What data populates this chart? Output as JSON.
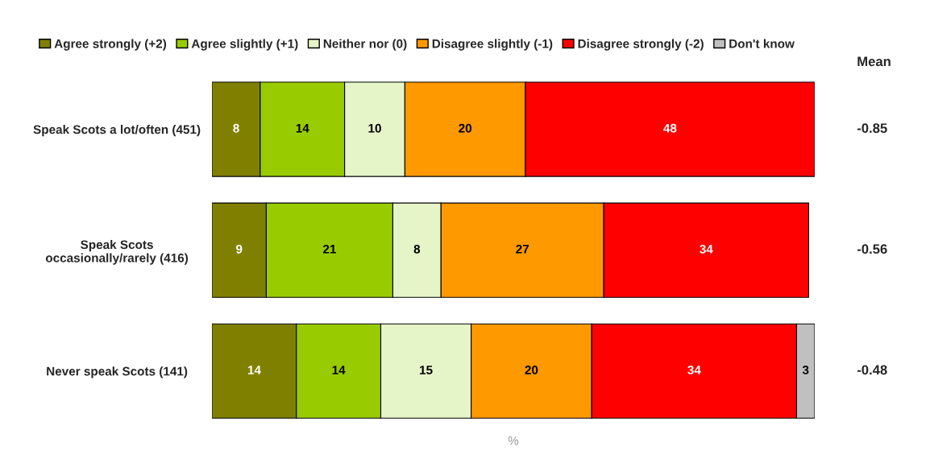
{
  "chart_data": {
    "type": "bar",
    "orientation": "horizontal",
    "stacked": true,
    "xlabel": "%",
    "categories": [
      "Speak Scots a lot/often (451)",
      "Speak Scots\noccasionally/rarely (416)",
      "Never speak Scots (141)"
    ],
    "series": [
      {
        "name": "Agree strongly (+2)",
        "color": "#808000",
        "values": [
          8,
          9,
          14
        ]
      },
      {
        "name": "Agree slightly (+1)",
        "color": "#99cc00",
        "values": [
          14,
          21,
          14
        ]
      },
      {
        "name": "Neither nor (0)",
        "color": "#e6f5c8",
        "values": [
          10,
          8,
          15
        ]
      },
      {
        "name": "Disagree slightly (-1)",
        "color": "#ff9900",
        "values": [
          20,
          27,
          20
        ]
      },
      {
        "name": "Disagree strongly (-2)",
        "color": "#ff0000",
        "values": [
          48,
          34,
          34
        ]
      },
      {
        "name": "Don't know",
        "color": "#c0c0c0",
        "values": [
          null,
          null,
          3
        ]
      }
    ],
    "xlim": [
      0,
      100
    ],
    "tick_labels": "y",
    "data_labels": true,
    "legend": "top",
    "grid": false,
    "annotations": [
      "Mean",
      "-0.85",
      "-0.56",
      "-0.48"
    ]
  }
}
